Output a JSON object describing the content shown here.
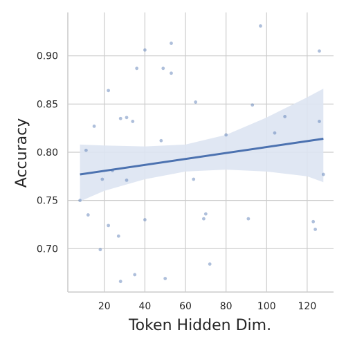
{
  "chart_data": {
    "type": "scatter",
    "title": "",
    "xlabel": "Token Hidden Dim.",
    "ylabel": "Accuracy",
    "xlim": [
      2,
      133
    ],
    "ylim": [
      0.655,
      0.945
    ],
    "xticks": [
      20,
      40,
      60,
      80,
      100,
      120
    ],
    "yticks": [
      0.7,
      0.75,
      0.8,
      0.85,
      0.9
    ],
    "xtick_labels": [
      "20",
      "40",
      "60",
      "80",
      "100",
      "120"
    ],
    "ytick_labels": [
      "0.70",
      "0.75",
      "0.80",
      "0.85",
      "0.90"
    ],
    "grid": true,
    "points": [
      {
        "x": 8,
        "y": 0.75
      },
      {
        "x": 11,
        "y": 0.802
      },
      {
        "x": 12,
        "y": 0.735
      },
      {
        "x": 15,
        "y": 0.827
      },
      {
        "x": 18,
        "y": 0.699
      },
      {
        "x": 19,
        "y": 0.772
      },
      {
        "x": 22,
        "y": 0.724
      },
      {
        "x": 22,
        "y": 0.864
      },
      {
        "x": 24,
        "y": 0.781
      },
      {
        "x": 27,
        "y": 0.713
      },
      {
        "x": 28,
        "y": 0.835
      },
      {
        "x": 28,
        "y": 0.666
      },
      {
        "x": 31,
        "y": 0.836
      },
      {
        "x": 31,
        "y": 0.771
      },
      {
        "x": 34,
        "y": 0.832
      },
      {
        "x": 35,
        "y": 0.673
      },
      {
        "x": 36,
        "y": 0.887
      },
      {
        "x": 40,
        "y": 0.906
      },
      {
        "x": 40,
        "y": 0.73
      },
      {
        "x": 48,
        "y": 0.812
      },
      {
        "x": 49,
        "y": 0.887
      },
      {
        "x": 50,
        "y": 0.669
      },
      {
        "x": 53,
        "y": 0.913
      },
      {
        "x": 53,
        "y": 0.882
      },
      {
        "x": 64,
        "y": 0.772
      },
      {
        "x": 65,
        "y": 0.852
      },
      {
        "x": 69,
        "y": 0.731
      },
      {
        "x": 70,
        "y": 0.736
      },
      {
        "x": 72,
        "y": 0.684
      },
      {
        "x": 80,
        "y": 0.818
      },
      {
        "x": 91,
        "y": 0.731
      },
      {
        "x": 93,
        "y": 0.849
      },
      {
        "x": 97,
        "y": 0.931
      },
      {
        "x": 104,
        "y": 0.82
      },
      {
        "x": 109,
        "y": 0.837
      },
      {
        "x": 123,
        "y": 0.728
      },
      {
        "x": 124,
        "y": 0.72
      },
      {
        "x": 126,
        "y": 0.905
      },
      {
        "x": 126,
        "y": 0.832
      },
      {
        "x": 128,
        "y": 0.777
      }
    ],
    "regression": {
      "x": [
        8,
        128
      ],
      "y": [
        0.777,
        0.814
      ]
    },
    "confidence_band": {
      "x": [
        8,
        20,
        40,
        60,
        80,
        100,
        120,
        128
      ],
      "upper": [
        0.808,
        0.807,
        0.806,
        0.808,
        0.818,
        0.836,
        0.857,
        0.866
      ],
      "lower": [
        0.749,
        0.76,
        0.772,
        0.78,
        0.782,
        0.78,
        0.775,
        0.769
      ]
    }
  },
  "colors": {
    "point": "#4c72b0",
    "line": "#4c72b0",
    "band": "#dde4f2",
    "grid": "#cccccc",
    "spine": "#cccccc"
  }
}
